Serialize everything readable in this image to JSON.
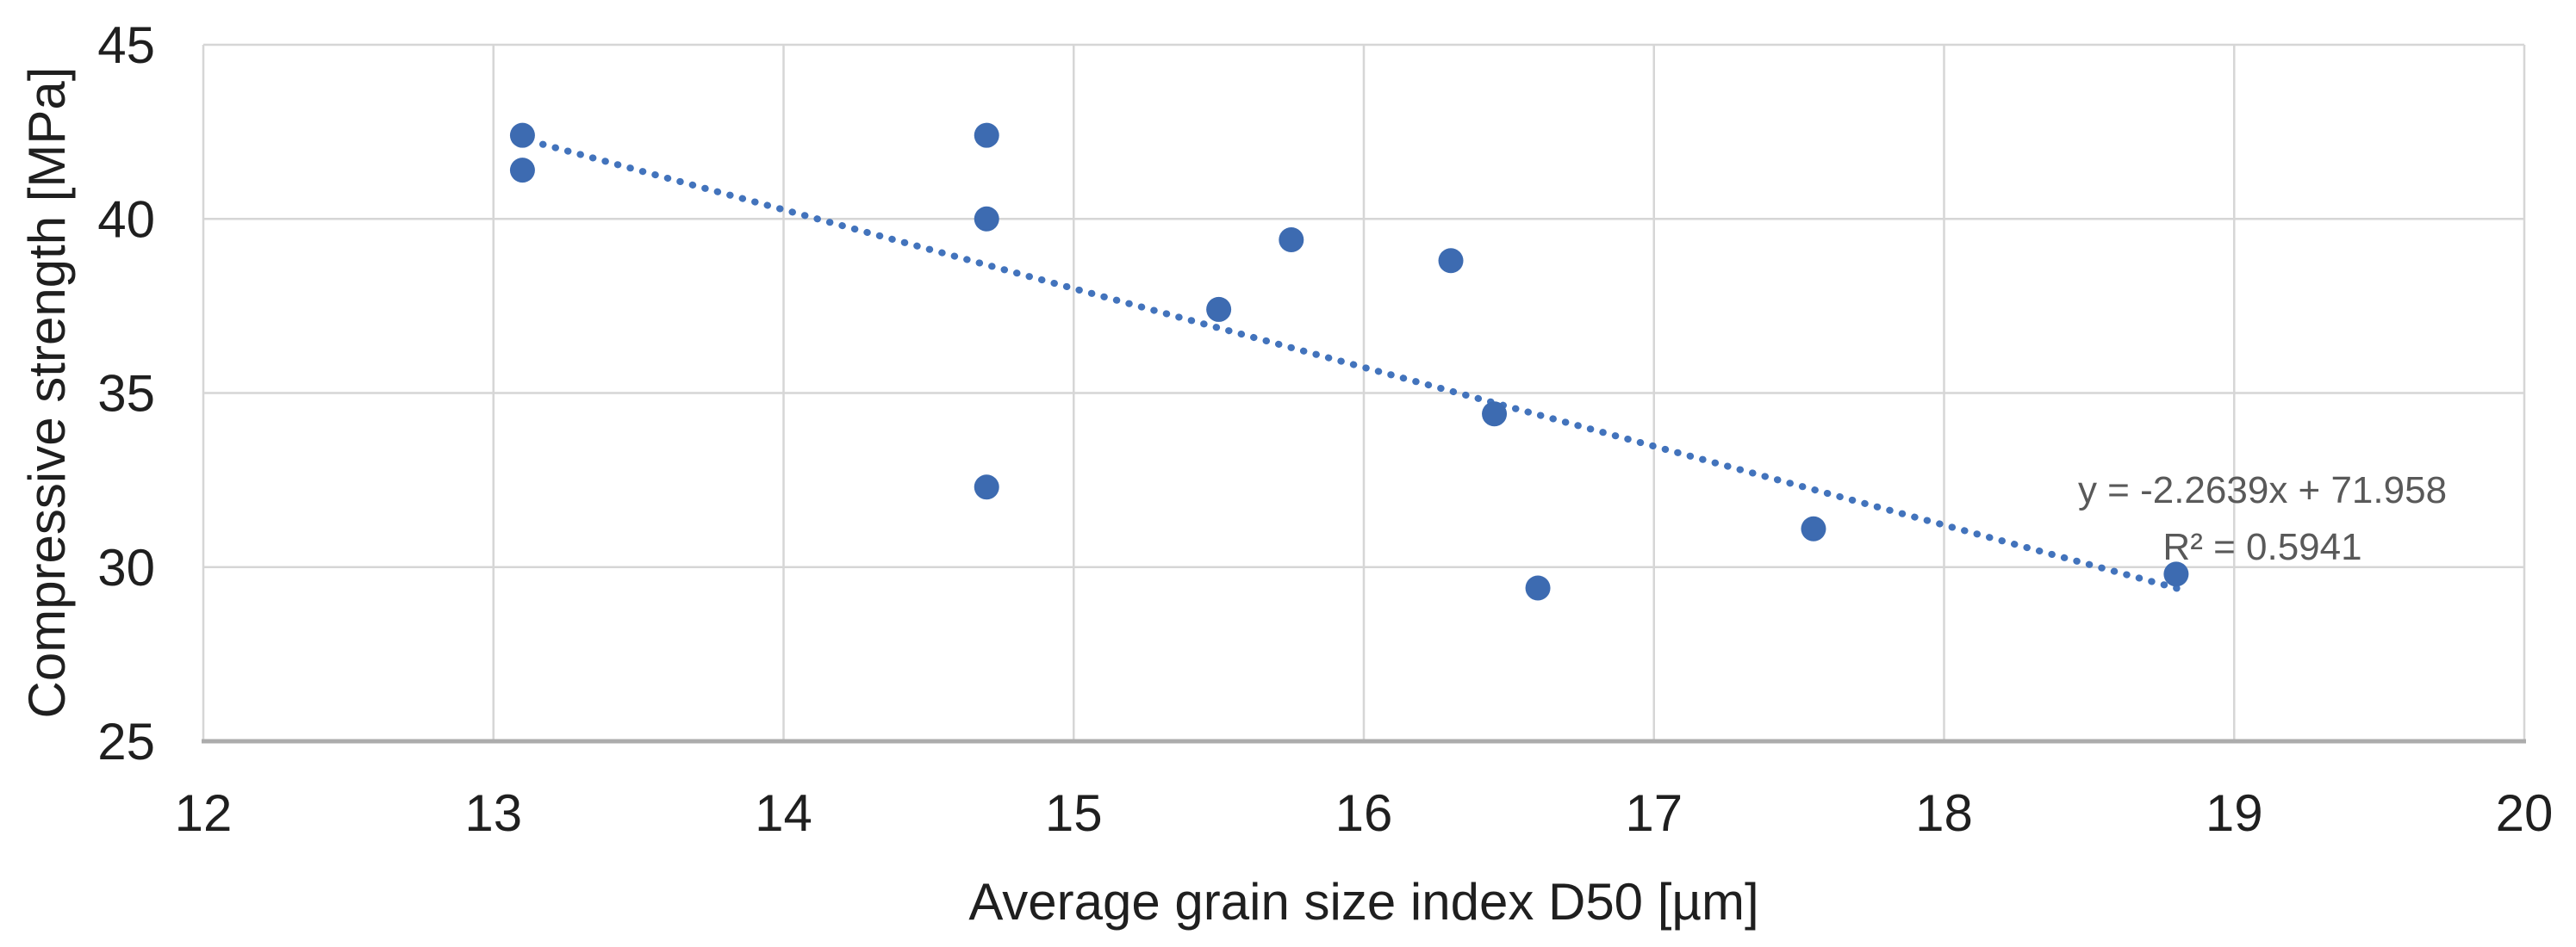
{
  "chart_data": {
    "type": "scatter",
    "title": "",
    "xlabel": "Average grain size index D50 [µm]",
    "ylabel": "Compressive strength [MPa]",
    "xlim": [
      12,
      20
    ],
    "ylim": [
      25,
      45
    ],
    "x_ticks": [
      12,
      13,
      14,
      15,
      16,
      17,
      18,
      19,
      20
    ],
    "y_ticks": [
      25,
      30,
      35,
      40,
      45
    ],
    "grid": true,
    "legend": false,
    "points": [
      {
        "x": 13.1,
        "y": 42.4
      },
      {
        "x": 13.1,
        "y": 41.4
      },
      {
        "x": 14.7,
        "y": 42.4
      },
      {
        "x": 14.7,
        "y": 40.0
      },
      {
        "x": 14.7,
        "y": 32.3
      },
      {
        "x": 15.5,
        "y": 37.4
      },
      {
        "x": 15.75,
        "y": 39.4
      },
      {
        "x": 16.3,
        "y": 38.8
      },
      {
        "x": 16.45,
        "y": 34.4
      },
      {
        "x": 16.6,
        "y": 29.4
      },
      {
        "x": 17.55,
        "y": 31.1
      },
      {
        "x": 18.8,
        "y": 29.8
      }
    ],
    "trendline": {
      "slope": -2.2639,
      "intercept": 71.958,
      "x_start": 13.17,
      "x_end": 18.82,
      "style": "dotted"
    },
    "annotation": {
      "equation": "y = -2.2639x + 71.958",
      "r_squared": "R² = 0.5941"
    },
    "colors": {
      "marker": "#3D6BB1",
      "trendline": "#4273BC",
      "gridline": "#D6D6D6",
      "axis_line": "#ACACAC",
      "tick_text": "#1F1F1F",
      "annotation_text": "#595959",
      "background": "#FFFFFF"
    }
  }
}
